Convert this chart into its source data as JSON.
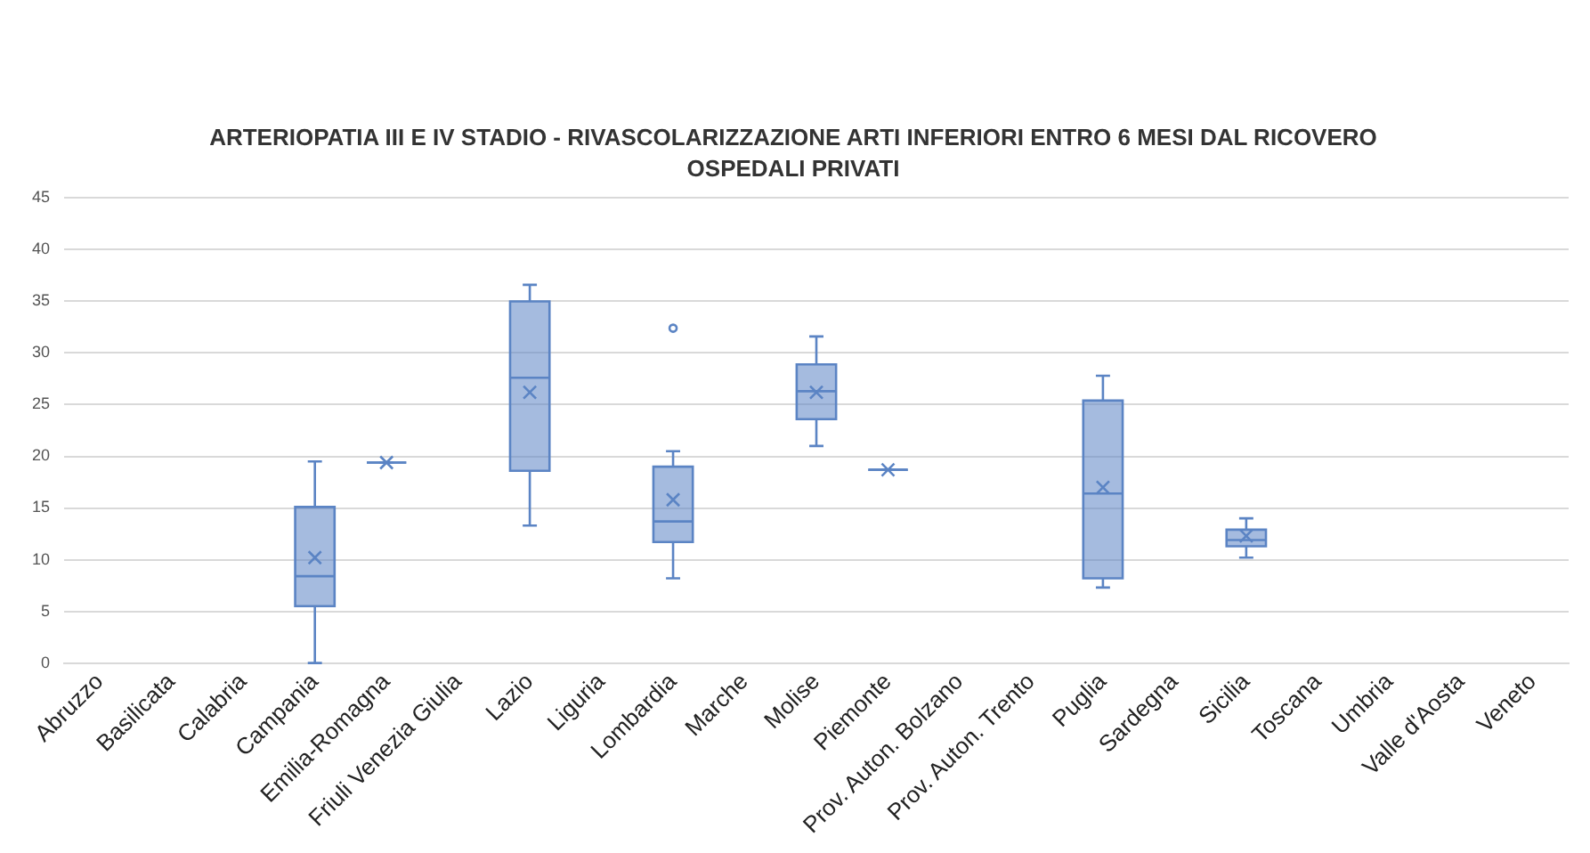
{
  "chart_data": {
    "type": "box",
    "title": "ARTERIOPATIA III E IV STADIO - RIVASCOLARIZZAZIONE ARTI INFERIORI ENTRO 6 MESI DAL RICOVERO",
    "subtitle": "OSPEDALI PRIVATI",
    "categories": [
      "Abruzzo",
      "Basilicata",
      "Calabria",
      "Campania",
      "Emilia-Romagna",
      "Friuli Venezia Giulia",
      "Lazio",
      "Liguria",
      "Lombardia",
      "Marche",
      "Molise",
      "Piemonte",
      "Prov. Auton. Bolzano",
      "Prov. Auton. Trento",
      "Puglia",
      "Sardegna",
      "Sicilia",
      "Toscana",
      "Umbria",
      "Valle d'Aosta",
      "Veneto"
    ],
    "series": [
      {
        "color": "#5b84c4",
        "boxes": [
          null,
          null,
          null,
          {
            "low": 0,
            "q1": 5.5,
            "median": 8.4,
            "q3": 15.1,
            "high": 19.5,
            "mean": 10.2
          },
          {
            "low": 19.4,
            "q1": 19.4,
            "median": 19.4,
            "q3": 19.4,
            "high": 19.4,
            "mean": 19.4
          },
          null,
          {
            "low": 13.3,
            "q1": 18.6,
            "median": 27.6,
            "q3": 35.0,
            "high": 36.6,
            "mean": 26.2
          },
          null,
          {
            "low": 8.2,
            "q1": 11.7,
            "median": 13.7,
            "q3": 19.0,
            "high": 20.5,
            "mean": 15.8,
            "outliers": [
              32.4
            ]
          },
          null,
          {
            "low": 21.0,
            "q1": 23.6,
            "median": 26.3,
            "q3": 28.9,
            "high": 31.6,
            "mean": 26.2
          },
          {
            "low": 18.7,
            "q1": 18.7,
            "median": 18.7,
            "q3": 18.7,
            "high": 18.7,
            "mean": 18.7
          },
          null,
          null,
          {
            "low": 7.3,
            "q1": 8.2,
            "median": 16.4,
            "q3": 25.4,
            "high": 27.8,
            "mean": 17.0
          },
          null,
          {
            "low": 10.2,
            "q1": 11.3,
            "median": 11.9,
            "q3": 12.9,
            "high": 14.0,
            "mean": 12.3
          },
          null,
          null,
          null,
          null
        ]
      }
    ],
    "ylim": [
      0,
      45
    ],
    "yticks": [
      0,
      5,
      10,
      15,
      20,
      25,
      30,
      35,
      40,
      45
    ],
    "grid": "y",
    "legend": false
  }
}
